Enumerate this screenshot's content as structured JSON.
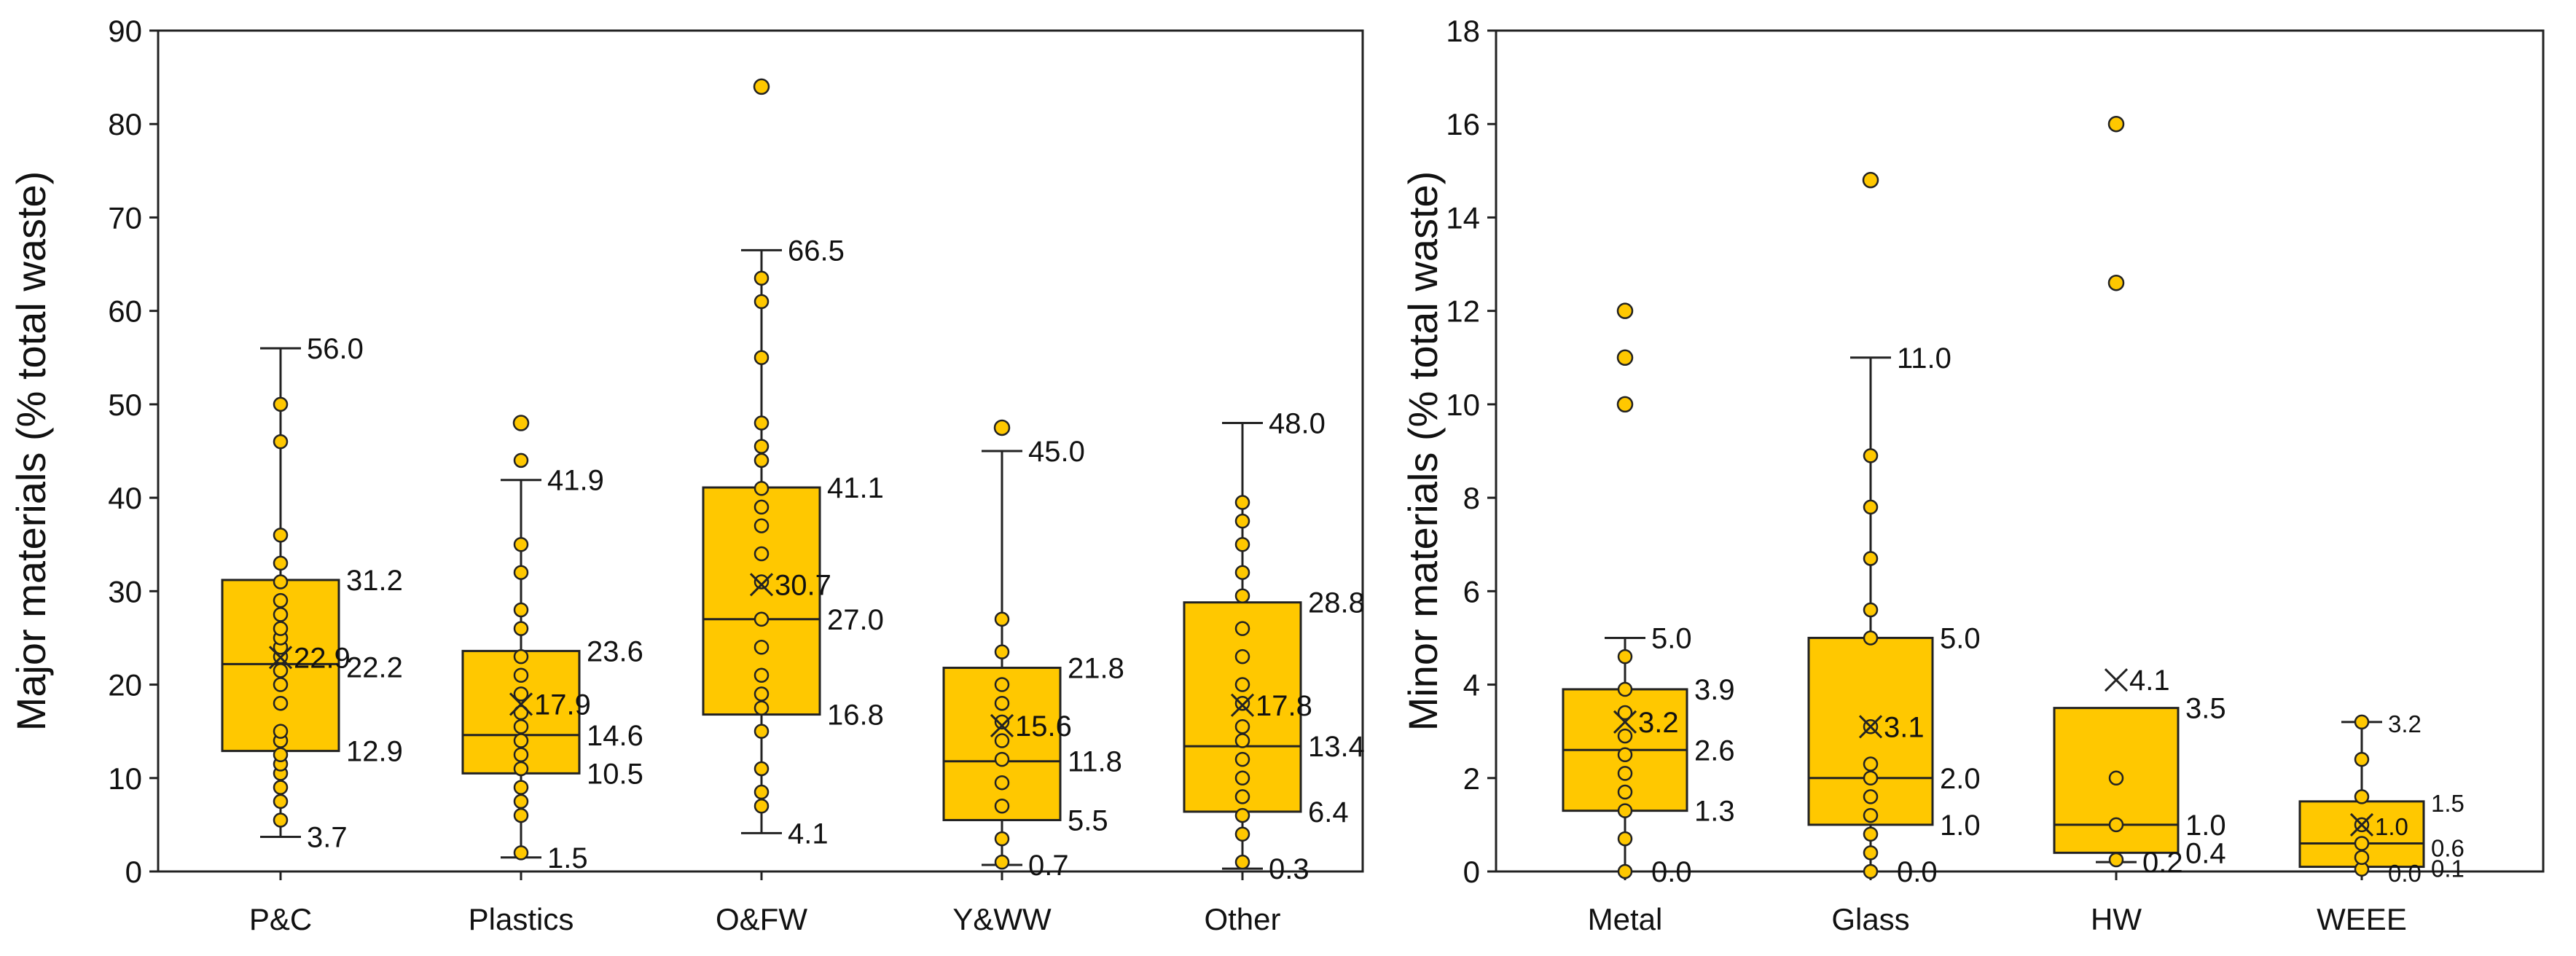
{
  "colors": {
    "box_fill": "#FFC800",
    "point_fill": "#FFC800",
    "stroke": "#222222"
  },
  "chart_data": [
    {
      "type": "box",
      "ylabel": "Major materials (% total waste)",
      "ylim": [
        0,
        90
      ],
      "yticks": [
        "0",
        "10",
        "20",
        "30",
        "40",
        "50",
        "60",
        "70",
        "80",
        "90"
      ],
      "categories": [
        {
          "name": "P&C",
          "min": 3.7,
          "q1": 12.9,
          "median": 22.2,
          "q3": 31.2,
          "max": 56.0,
          "mean": 22.9,
          "points": [
            5.5,
            7.5,
            9,
            10.5,
            11.5,
            12.5,
            14,
            15,
            18,
            20,
            21.5,
            23,
            24,
            25,
            26,
            27.5,
            29,
            31,
            33,
            36,
            46,
            50
          ],
          "outliers": [],
          "labels": {
            "min": "3.7",
            "q1": "12.9",
            "median": "22.2",
            "q3": "31.2",
            "max": "56.0",
            "mean": "22.9"
          }
        },
        {
          "name": "Plastics",
          "min": 1.5,
          "q1": 10.5,
          "median": 14.6,
          "q3": 23.6,
          "max": 41.9,
          "mean": 17.9,
          "points": [
            2,
            6,
            7.5,
            9,
            11,
            12.5,
            14,
            15.5,
            17,
            19,
            21,
            23,
            26,
            28,
            32,
            35,
            44
          ],
          "outliers": [
            48
          ],
          "labels": {
            "min": "1.5",
            "q1": "10.5",
            "median": "14.6",
            "q3": "23.6",
            "max": "41.9",
            "mean": "17.9"
          }
        },
        {
          "name": "O&FW",
          "min": 4.1,
          "q1": 16.8,
          "median": 27.0,
          "q3": 41.1,
          "max": 66.5,
          "mean": 30.7,
          "points": [
            7,
            8.5,
            11,
            15,
            17.5,
            19,
            21,
            24,
            27,
            31,
            34,
            37,
            39,
            41,
            44,
            45.5,
            48,
            55,
            61,
            63.5
          ],
          "outliers": [
            84
          ],
          "labels": {
            "min": "4.1",
            "q1": "16.8",
            "median": "27.0",
            "q3": "41.1",
            "max": "66.5",
            "mean": "30.7"
          }
        },
        {
          "name": "Y&WW",
          "min": 0.7,
          "q1": 5.5,
          "median": 11.8,
          "q3": 21.8,
          "max": 45.0,
          "mean": 15.6,
          "points": [
            1,
            3.5,
            7,
            9.5,
            12,
            14,
            16,
            18,
            20,
            23.5,
            27
          ],
          "outliers": [
            47.5
          ],
          "labels": {
            "min": "0.7",
            "q1": "5.5",
            "median": "11.8",
            "q3": "21.8",
            "max": "45.0",
            "mean": "15.6"
          }
        },
        {
          "name": "Other",
          "min": 0.3,
          "q1": 6.4,
          "median": 13.4,
          "q3": 28.8,
          "max": 48.0,
          "mean": 17.8,
          "points": [
            1,
            4,
            6,
            8,
            10,
            12,
            14,
            15.5,
            18,
            20,
            23,
            26,
            29.5,
            32,
            35,
            37.5,
            39.5
          ],
          "outliers": [],
          "labels": {
            "min": "0.3",
            "q1": "6.4",
            "median": "13.4",
            "q3": "28.8",
            "max": "48.0",
            "mean": "17.8"
          }
        }
      ]
    },
    {
      "type": "box",
      "ylabel": "Minor materials (% total waste)",
      "ylim": [
        0,
        18
      ],
      "yticks": [
        "0",
        "2",
        "4",
        "6",
        "8",
        "10",
        "12",
        "14",
        "16",
        "18"
      ],
      "categories": [
        {
          "name": "Metal",
          "min": 0.0,
          "q1": 1.3,
          "median": 2.6,
          "q3": 3.9,
          "max": 5.0,
          "mean": 3.2,
          "points": [
            0,
            0.7,
            1.3,
            1.7,
            2.1,
            2.5,
            2.9,
            3.4,
            3.9,
            4.6
          ],
          "outliers": [
            10,
            11,
            12
          ],
          "labels": {
            "min": "0.0",
            "q1": "1.3",
            "median": "2.6",
            "q3": "3.9",
            "max": "5.0",
            "mean": "3.2"
          }
        },
        {
          "name": "Glass",
          "min": 0.0,
          "q1": 1.0,
          "median": 2.0,
          "q3": 5.0,
          "max": 11.0,
          "mean": 3.1,
          "points": [
            0,
            0.4,
            0.8,
            1.2,
            1.6,
            2.0,
            2.3,
            3.1,
            5.0,
            5.6,
            6.7,
            7.8,
            8.9
          ],
          "outliers": [
            14.8
          ],
          "labels": {
            "min": "0.0",
            "q1": "1.0",
            "median": "2.0",
            "q3": "5.0",
            "max": "11.0",
            "mean": "3.1"
          }
        },
        {
          "name": "HW",
          "min": 0.2,
          "q1": 0.4,
          "median": 1.0,
          "q3": 3.5,
          "max": 3.5,
          "mean": 4.1,
          "points": [
            0.25,
            1.0,
            2.0
          ],
          "outliers": [
            12.6,
            16
          ],
          "labels": {
            "min": "0.2",
            "q1": "0.4",
            "median": "1.0",
            "q3": "3.5",
            "max": "",
            "mean": "4.1"
          }
        },
        {
          "name": "WEEE",
          "min": 0.0,
          "q1": 0.1,
          "median": 0.6,
          "q3": 1.5,
          "max": 3.2,
          "mean": 1.0,
          "points": [
            0.05,
            0.3,
            0.6,
            1.0,
            1.6,
            2.4,
            3.2
          ],
          "outliers": [],
          "labels": {
            "min": "0.0",
            "q1": "0.1",
            "median": "0.6",
            "q3": "1.5",
            "max": "3.2",
            "mean": "1.0"
          }
        }
      ]
    }
  ]
}
